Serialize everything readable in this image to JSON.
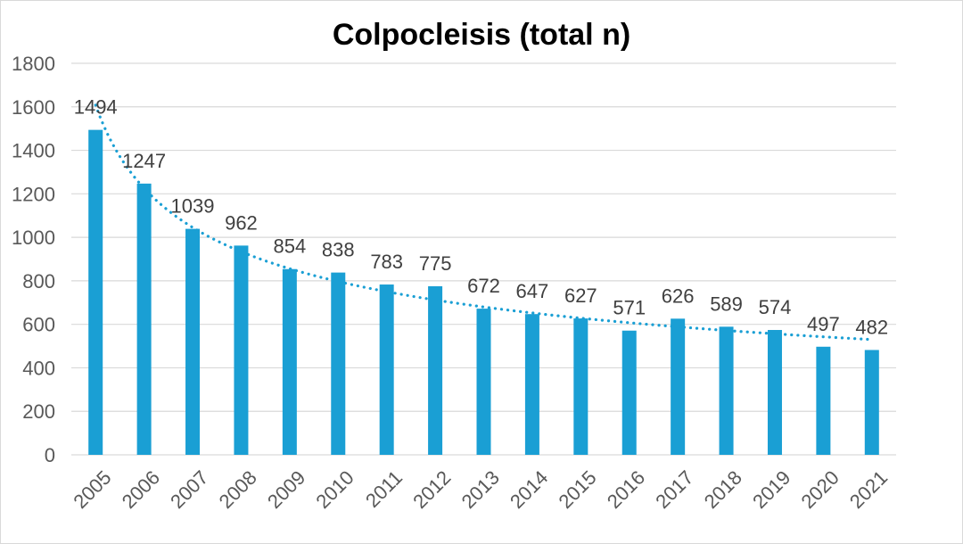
{
  "chart_data": {
    "type": "bar",
    "title": "Colpocleisis (total n)",
    "xlabel": "",
    "ylabel": "",
    "categories": [
      "2005",
      "2006",
      "2007",
      "2008",
      "2009",
      "2010",
      "2011",
      "2012",
      "2013",
      "2014",
      "2015",
      "2016",
      "2017",
      "2018",
      "2019",
      "2020",
      "2021"
    ],
    "values": [
      1494,
      1247,
      1039,
      962,
      854,
      838,
      783,
      775,
      672,
      647,
      627,
      571,
      626,
      589,
      574,
      497,
      482
    ],
    "ylim": [
      0,
      1800
    ],
    "yticks": [
      0,
      200,
      400,
      600,
      800,
      1000,
      1200,
      1400,
      1600,
      1800
    ],
    "ytick_labels": [
      "0",
      "200",
      "400",
      "600",
      "800",
      "1000",
      "1200",
      "1400",
      "1600",
      "1800"
    ],
    "grid": true,
    "bar_color": "#1a9fd4",
    "gridline_color": "#d9d9d9",
    "trendline": {
      "type": "power",
      "style": "dotted",
      "color": "#1a9fd4"
    },
    "data_labels": true,
    "legend": "none"
  }
}
